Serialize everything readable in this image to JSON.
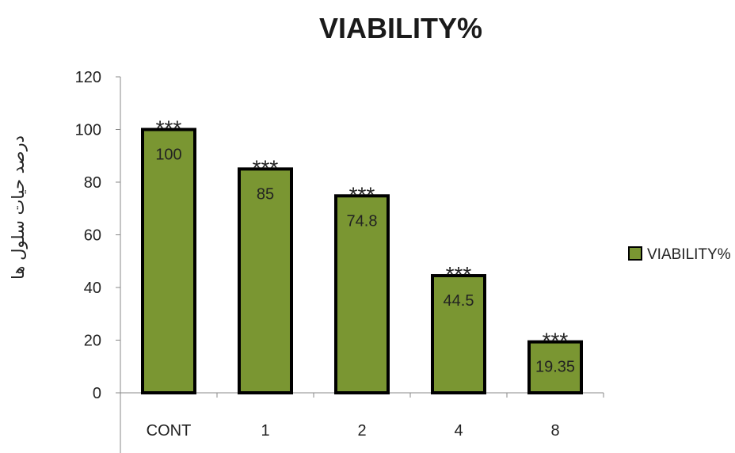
{
  "chart_data": {
    "type": "bar",
    "title": "VIABILITY%",
    "xlabel": "",
    "ylabel": "درصد حیات سلول ها",
    "categories": [
      "CONT",
      "1",
      "2",
      "4",
      "8"
    ],
    "series": [
      {
        "name": "VIABILITY%",
        "values": [
          100,
          85,
          74.8,
          44.5,
          19.35
        ],
        "data_labels": [
          "100",
          "85",
          "74.8",
          "44.5",
          "19.35"
        ],
        "annotations": [
          "***",
          "***",
          "***",
          "***",
          "***"
        ]
      }
    ],
    "ylim": [
      0,
      120
    ],
    "yticks": [
      0,
      20,
      40,
      60,
      80,
      100,
      120
    ],
    "grid": false,
    "legend_position": "right",
    "colors": {
      "bar_fill": "#7a9632",
      "bar_stroke": "#000000",
      "axis": "#888888"
    }
  }
}
